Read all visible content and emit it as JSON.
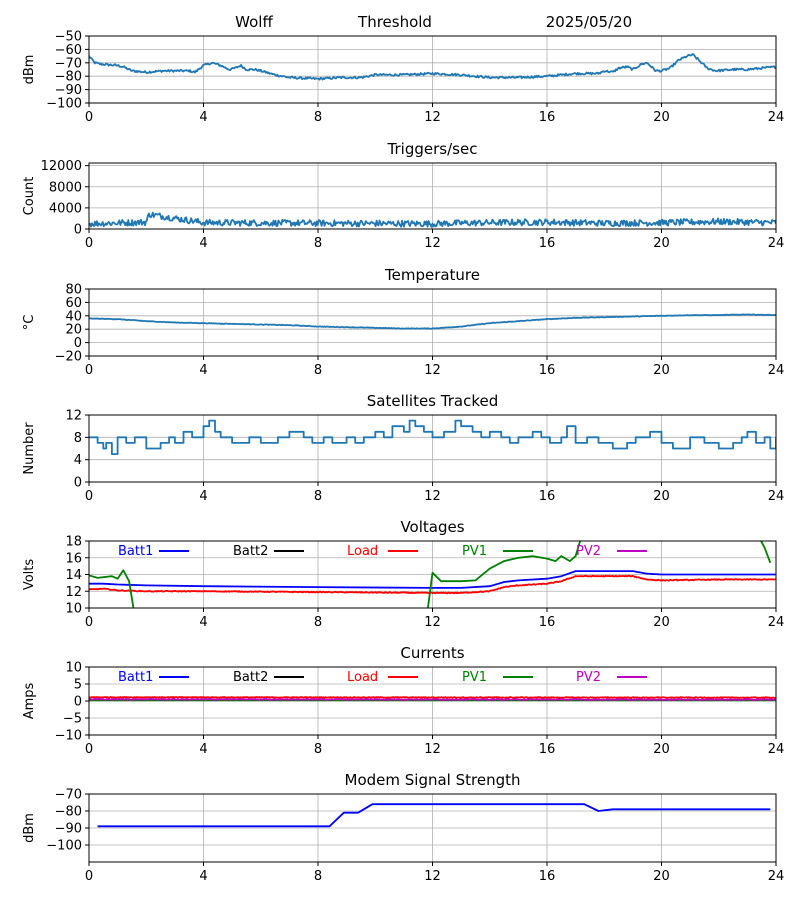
{
  "header": {
    "station": "Wolff",
    "mode": "Threshold",
    "date": "2025/05/20"
  },
  "x_ticks": [
    "0",
    "4",
    "8",
    "12",
    "16",
    "20",
    "24"
  ],
  "chart_data": [
    {
      "id": "threshold",
      "type": "line",
      "title": "",
      "ylabel": "dBm",
      "xlim": [
        0,
        24
      ],
      "ylim": [
        -100,
        -50
      ],
      "yticks": [
        -100,
        -90,
        -80,
        -70,
        -60,
        -50
      ],
      "ytick_labels": [
        "−100",
        "−90",
        "−80",
        "−70",
        "−60",
        "−50"
      ],
      "grid": true,
      "series": [
        {
          "color": "#1f77b4",
          "noise": 0.8,
          "x": [
            0,
            0.2,
            0.4,
            1,
            1.2,
            1.5,
            2,
            2.6,
            3,
            3.5,
            3.7,
            4,
            4.3,
            4.6,
            4.9,
            5.1,
            5.3,
            5.5,
            5.8,
            6,
            6.5,
            7,
            8,
            8.8,
            9.5,
            10,
            11,
            12,
            13,
            14,
            15,
            16,
            17,
            17.8,
            18,
            18.3,
            18.5,
            18.8,
            19,
            19.3,
            19.5,
            19.8,
            20,
            20.3,
            20.6,
            20.9,
            21.1,
            21.3,
            21.6,
            21.9,
            22.5,
            23,
            23.5,
            24
          ],
          "y": [
            -65,
            -70,
            -71,
            -72,
            -73,
            -76,
            -77,
            -76,
            -76,
            -76,
            -77,
            -72,
            -70,
            -72,
            -75,
            -74,
            -72,
            -75,
            -75,
            -76,
            -79,
            -81,
            -82,
            -81,
            -81,
            -79,
            -79,
            -78,
            -79,
            -81,
            -81,
            -80,
            -78,
            -78,
            -76,
            -77,
            -74,
            -73,
            -75,
            -71,
            -70,
            -76,
            -76,
            -74,
            -68,
            -65,
            -64,
            -68,
            -74,
            -76,
            -75,
            -75,
            -74,
            -73
          ]
        }
      ]
    },
    {
      "id": "triggers",
      "type": "line",
      "title": "Triggers/sec",
      "ylabel": "Count",
      "xlim": [
        0,
        24
      ],
      "ylim": [
        0,
        12500
      ],
      "yticks": [
        0,
        4000,
        8000,
        12000
      ],
      "ytick_labels": [
        "0",
        "4000",
        "8000",
        "12000"
      ],
      "grid": true,
      "series": [
        {
          "color": "#1f77b4",
          "noise": 600,
          "x": [
            0,
            2,
            2.1,
            4,
            8,
            12,
            14,
            16,
            18,
            20,
            22,
            24
          ],
          "y": [
            1000,
            1300,
            2800,
            1200,
            1100,
            1000,
            1200,
            1300,
            1100,
            1200,
            1400,
            1200
          ]
        }
      ]
    },
    {
      "id": "temperature",
      "type": "line",
      "title": "Temperature",
      "ylabel": "°C",
      "xlim": [
        0,
        24
      ],
      "ylim": [
        -20,
        80
      ],
      "yticks": [
        -20,
        0,
        20,
        40,
        60,
        80
      ],
      "ytick_labels": [
        "−20",
        "0",
        "20",
        "40",
        "60",
        "80"
      ],
      "grid": true,
      "series": [
        {
          "color": "#1f77b4",
          "noise": 0.4,
          "x": [
            0,
            1,
            2,
            3,
            4,
            5,
            6,
            7,
            8,
            9,
            10,
            11,
            12,
            13,
            14,
            15,
            16,
            17,
            18,
            19,
            20,
            21,
            22,
            23,
            24
          ],
          "y": [
            36,
            35,
            32,
            30,
            29,
            28,
            27,
            26,
            24,
            23,
            22,
            21,
            21,
            24,
            29,
            32,
            35,
            37,
            38,
            39,
            40,
            41,
            41,
            42,
            41
          ]
        }
      ]
    },
    {
      "id": "satellites",
      "type": "line",
      "title": "Satellites Tracked",
      "ylabel": "Number",
      "xlim": [
        0,
        24
      ],
      "ylim": [
        0,
        12
      ],
      "yticks": [
        0,
        4,
        8,
        12
      ],
      "ytick_labels": [
        "0",
        "4",
        "8",
        "12"
      ],
      "grid": true,
      "series": [
        {
          "color": "#1f77b4",
          "step": true,
          "noise": 0,
          "x": [
            0,
            0.3,
            0.5,
            0.6,
            0.8,
            1,
            1.3,
            1.6,
            2,
            2.5,
            2.8,
            3,
            3.3,
            3.6,
            4,
            4.2,
            4.4,
            4.6,
            5,
            5.6,
            6,
            6.6,
            7,
            7.5,
            7.8,
            8.2,
            8.5,
            9,
            9.3,
            9.6,
            10,
            10.3,
            10.6,
            11,
            11.2,
            11.4,
            11.7,
            12,
            12.4,
            12.8,
            13,
            13.4,
            13.7,
            14,
            14.4,
            14.7,
            15,
            15.5,
            15.8,
            16.1,
            16.5,
            16.7,
            17,
            17.4,
            17.8,
            18.3,
            18.8,
            19.1,
            19.6,
            20,
            20.4,
            21,
            21.5,
            22,
            22.5,
            22.8,
            23,
            23.3,
            23.6,
            23.8,
            24
          ],
          "y": [
            8,
            7,
            6,
            7,
            5,
            8,
            7,
            8,
            6,
            7,
            8,
            7,
            9,
            8,
            10,
            11,
            9,
            8,
            7,
            8,
            7,
            8,
            9,
            8,
            7,
            8,
            7,
            8,
            7,
            8,
            9,
            8,
            10,
            9,
            11,
            10,
            9,
            8,
            9,
            11,
            10,
            9,
            8,
            9,
            8,
            7,
            8,
            9,
            8,
            7,
            8,
            10,
            7,
            8,
            7,
            6,
            7,
            8,
            9,
            7,
            6,
            8,
            7,
            6,
            7,
            8,
            9,
            7,
            8,
            6,
            8
          ]
        }
      ]
    },
    {
      "id": "voltages",
      "type": "line",
      "title": "Voltages",
      "ylabel": "Volts",
      "xlim": [
        0,
        24
      ],
      "ylim": [
        10,
        18
      ],
      "yticks": [
        10,
        12,
        14,
        16,
        18
      ],
      "ytick_labels": [
        "10",
        "12",
        "14",
        "16",
        "18"
      ],
      "grid": true,
      "legend_position": "top",
      "series": [
        {
          "name": "Batt1",
          "color": "#0000ff",
          "noise": 0,
          "x": [
            0,
            0.5,
            1,
            2,
            4,
            8,
            12,
            13,
            14,
            14.5,
            15,
            16,
            16.5,
            17,
            18,
            19,
            19.5,
            20,
            22,
            23,
            24
          ],
          "y": [
            12.9,
            12.9,
            12.8,
            12.7,
            12.6,
            12.5,
            12.4,
            12.4,
            12.6,
            13.1,
            13.3,
            13.5,
            13.8,
            14.4,
            14.4,
            14.4,
            14.1,
            14.0,
            14.0,
            14.0,
            14.0
          ]
        },
        {
          "name": "Batt2",
          "color": "#000000",
          "noise": 0,
          "x": [],
          "y": []
        },
        {
          "name": "Load",
          "color": "#ff0000",
          "noise": 0.05,
          "x": [
            0,
            0.5,
            1,
            2,
            4,
            8,
            12,
            13,
            14,
            14.5,
            15,
            16,
            16.5,
            17,
            18,
            19,
            19.5,
            20,
            22,
            23,
            24
          ],
          "y": [
            12.2,
            12.3,
            12.1,
            12.0,
            12.0,
            11.9,
            11.8,
            11.8,
            12.0,
            12.5,
            12.7,
            12.9,
            13.2,
            13.8,
            13.8,
            13.8,
            13.4,
            13.3,
            13.4,
            13.4,
            13.4
          ]
        },
        {
          "name": "PV1",
          "color": "#008000",
          "noise": 0,
          "x": [
            0,
            0.3,
            0.8,
            1,
            1.2,
            1.4,
            1.6,
            1.8,
            11.8,
            12,
            12.3,
            12.5,
            13,
            13.5,
            14,
            14.5,
            15,
            15.5,
            16,
            16.3,
            16.5,
            16.8,
            17,
            17.2,
            18,
            20,
            23.4,
            23.6,
            23.8
          ],
          "y": [
            13.9,
            13.6,
            13.8,
            13.5,
            14.5,
            13.2,
            9,
            9,
            9,
            14.2,
            13.2,
            13.2,
            13.2,
            13.3,
            14.7,
            15.6,
            16.0,
            16.2,
            15.9,
            15.6,
            16.2,
            15.6,
            16.2,
            18.5,
            19,
            19,
            18.5,
            17.2,
            15.4
          ]
        },
        {
          "name": "PV2",
          "color": "#bf00bf",
          "noise": 0,
          "x": [],
          "y": []
        }
      ]
    },
    {
      "id": "currents",
      "type": "line",
      "title": "Currents",
      "ylabel": "Amps",
      "xlim": [
        0,
        24
      ],
      "ylim": [
        -10,
        10
      ],
      "yticks": [
        -10,
        -5,
        0,
        5,
        10
      ],
      "ytick_labels": [
        "−10",
        "−5",
        "0",
        "5",
        "10"
      ],
      "grid": true,
      "legend_position": "top",
      "series": [
        {
          "name": "Batt1",
          "color": "#0000ff",
          "noise": 0,
          "x": [
            0,
            24
          ],
          "y": [
            0.3,
            0.3
          ]
        },
        {
          "name": "Batt2",
          "color": "#000000",
          "noise": 0,
          "x": [],
          "y": []
        },
        {
          "name": "Load",
          "color": "#ff0000",
          "noise": 0.1,
          "x": [
            0,
            24
          ],
          "y": [
            1.1,
            1.0
          ]
        },
        {
          "name": "PV1",
          "color": "#008000",
          "noise": 0,
          "x": [
            0,
            24
          ],
          "y": [
            0.2,
            0.2
          ]
        },
        {
          "name": "PV2",
          "color": "#bf00bf",
          "noise": 0.15,
          "x": [
            0,
            24
          ],
          "y": [
            0.5,
            0.4
          ]
        }
      ]
    },
    {
      "id": "modem",
      "type": "line",
      "title": "Modem Signal Strength",
      "ylabel": "dBm",
      "xlim": [
        0,
        24
      ],
      "ylim": [
        -110,
        -70
      ],
      "yticks": [
        -100,
        -90,
        -80,
        -70
      ],
      "ytick_labels": [
        "−100",
        "−90",
        "−80",
        "−70"
      ],
      "grid": true,
      "series": [
        {
          "color": "#0000ff",
          "noise": 0,
          "x": [
            0.3,
            8.4,
            8.9,
            9.4,
            9.9,
            17.3,
            17.8,
            18.3,
            23.8
          ],
          "y": [
            -89,
            -89,
            -81,
            -81,
            -76,
            -76,
            -80,
            -79,
            -79
          ]
        }
      ]
    }
  ]
}
